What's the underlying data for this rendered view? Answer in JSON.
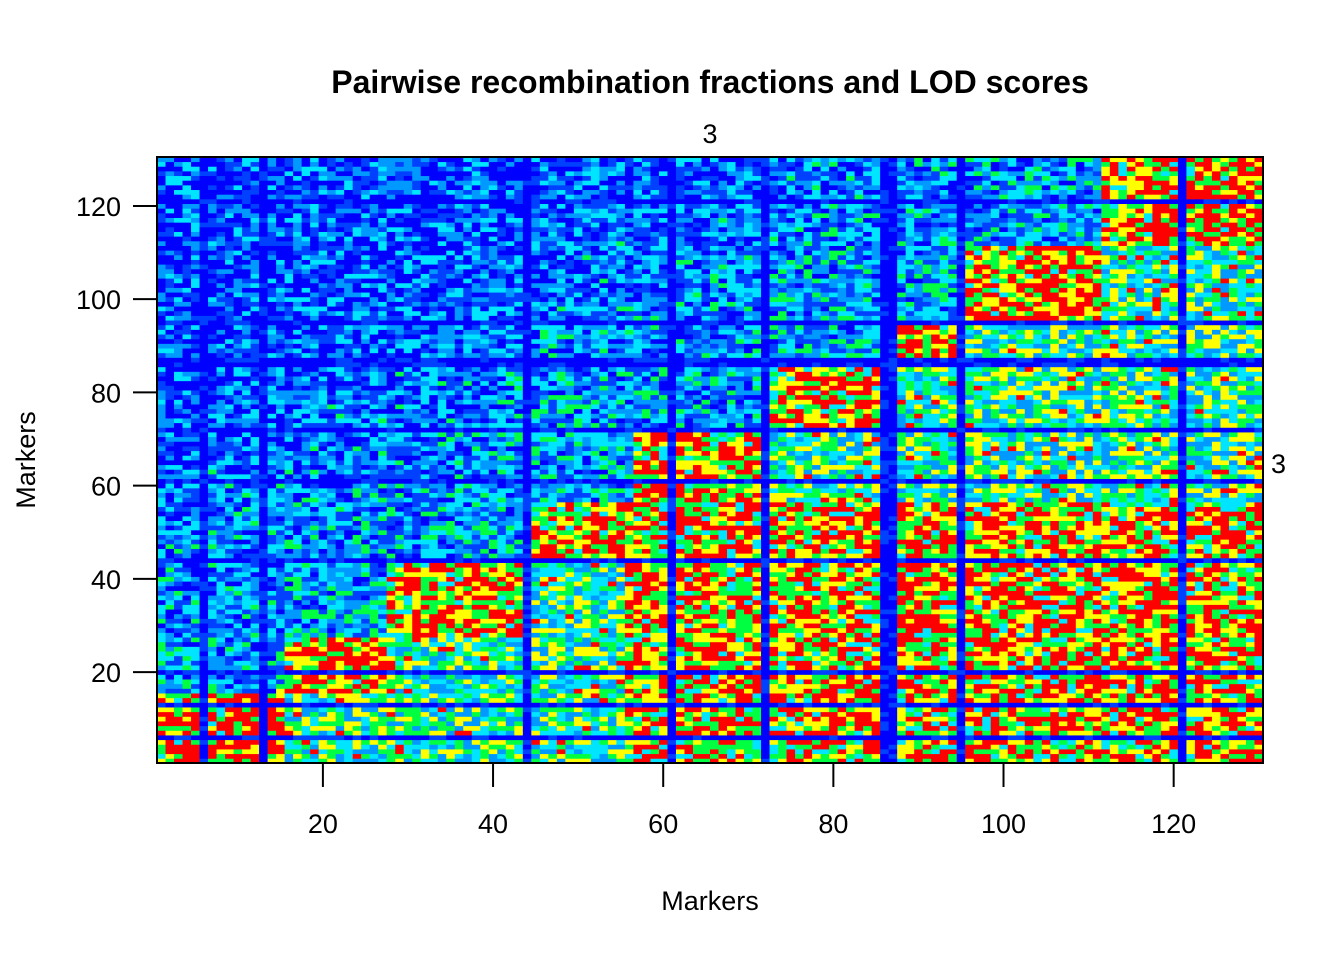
{
  "chart_data": {
    "type": "heatmap",
    "title": "Pairwise recombination fractions and LOD scores",
    "xlabel": "Markers",
    "ylabel": "Markers",
    "n_markers": 130,
    "xlim": [
      0.5,
      130.5
    ],
    "ylim": [
      0.5,
      130.5
    ],
    "x_ticks": [
      20,
      40,
      60,
      80,
      100,
      120
    ],
    "y_ticks": [
      20,
      40,
      60,
      80,
      100,
      120
    ],
    "group_label_top": "3",
    "group_label_right": "3",
    "colors": [
      "#ff0000",
      "#ffff00",
      "#00ff40",
      "#00e5ff",
      "#0099ff",
      "#0040ff",
      "#0000ff"
    ],
    "diagonal": [
      [
        1,
        1
      ],
      [
        10,
        10
      ],
      [
        17,
        20
      ],
      [
        25,
        25
      ],
      [
        45,
        47
      ],
      [
        55,
        55
      ],
      [
        65,
        62
      ],
      [
        71,
        67
      ],
      [
        85,
        82
      ],
      [
        94,
        92
      ],
      [
        103,
        105
      ],
      [
        110,
        108
      ],
      [
        121,
        121
      ],
      [
        130,
        130
      ]
    ],
    "block_bounds": [
      1,
      16,
      28,
      45,
      57,
      72,
      87,
      96,
      112,
      130
    ],
    "dark_blue_columns": [
      6,
      13,
      44,
      61,
      72,
      86,
      87,
      95,
      121
    ],
    "dark_blue_rows": [
      6,
      13,
      20,
      44,
      61,
      72,
      86,
      87,
      95,
      121
    ],
    "grid": false,
    "legend": "none"
  }
}
